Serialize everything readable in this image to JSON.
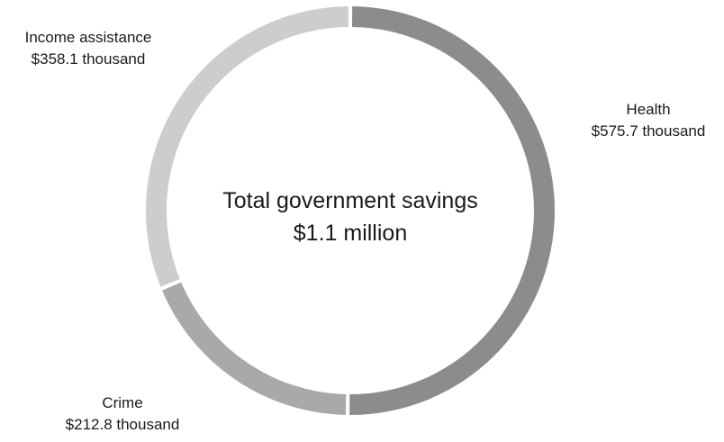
{
  "chart_data": {
    "type": "pie",
    "donut": true,
    "center_text": [
      "Total government savings",
      "$1.1 million"
    ],
    "slices": [
      {
        "name": "Health",
        "value": 575.7,
        "label": "$575.7 thousand",
        "color": "#8c8c8c"
      },
      {
        "name": "Crime",
        "value": 212.8,
        "label": "$212.8 thousand",
        "color": "#a9a9a9"
      },
      {
        "name": "Income assistance",
        "value": 358.1,
        "label": "$358.1 thousand",
        "color": "#cdcdcd"
      }
    ],
    "start": "top",
    "direction": "clockwise",
    "legend": "none"
  }
}
